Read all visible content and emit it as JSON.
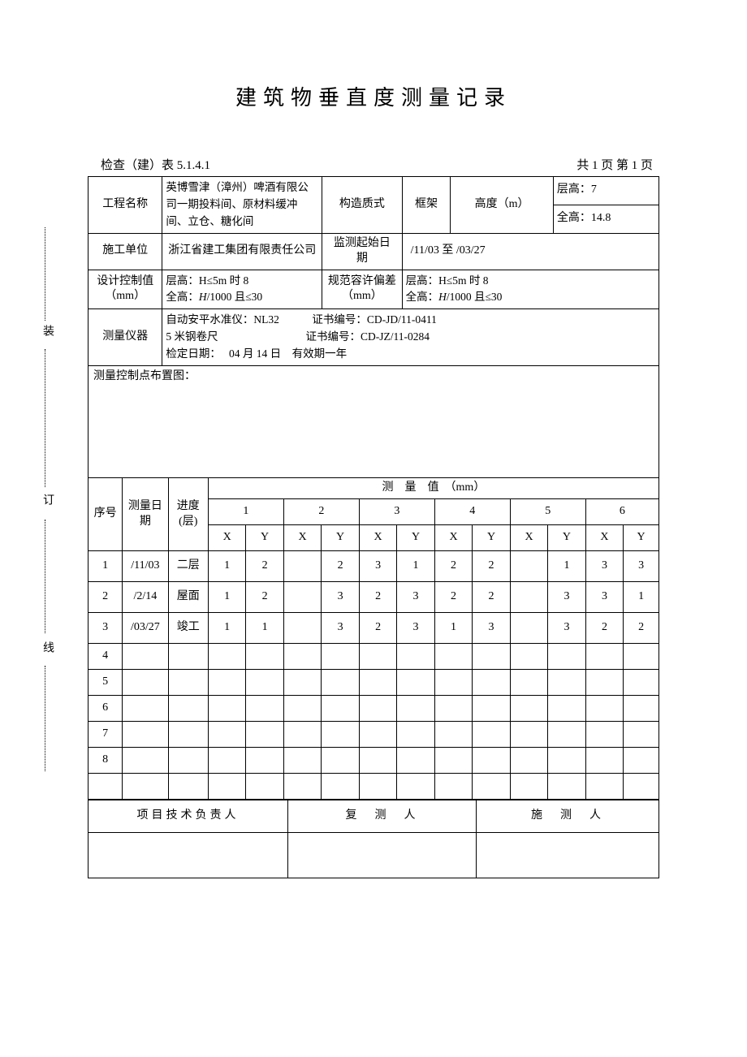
{
  "title": "建筑物垂直度测量记录",
  "form_no_label": "检查（建）表 5.1.4.1",
  "page_info": "共 1 页 第 1 页",
  "labels": {
    "project_name": "工程名称",
    "structure_type": "构造质式",
    "frame": "框架",
    "height_m": "高度（m）",
    "floor_h": "层高：",
    "total_h": "全高：",
    "contractor": "施工单位",
    "monitor_period": "监测起始日　期",
    "design_ctrl": "设计控制值（mm）",
    "spec_tol": "规范容许偏差（mm）",
    "instrument": "测量仪器",
    "ctrl_pt_layout": "测量控制点布置图：",
    "seq": "序号",
    "date": "测量日期",
    "floor": "进度(层)",
    "measure_value": "测　量　值　（mm）",
    "pm": "项目技术负责人",
    "rechecker": "复　测　人",
    "surveyor": "施　测　人"
  },
  "project": {
    "name": "英博雪津（漳州）啤酒有限公司一期投料间、原材料缓冲间、立仓、糖化间",
    "floor_height": "7",
    "total_height": "14.8",
    "contractor": "浙江省建工集团有限责任公司",
    "period": "/11/03 至 /03/27"
  },
  "design_ctrl_1": "层高：H≤5m 时 8",
  "design_ctrl_2_pre": "全高：",
  "design_ctrl_2_H": "H",
  "design_ctrl_2_post": "/1000 且≤30",
  "spec_1": "层高：H≤5m 时 8",
  "spec_2_pre": "全高：",
  "spec_2_H": "H",
  "spec_2_post": "/1000 且≤30",
  "instrument_lines": {
    "l1": "自动安平水准仪：NL32　　　证书编号：CD-JD/11-0411",
    "l2": "5 米钢卷尺　　　　　　　　证书编号：CD-JZ/11-0284",
    "l3": "检定日期：　 04 月 14 日　有效期一年"
  },
  "points": [
    "1",
    "2",
    "3",
    "4",
    "5",
    "6"
  ],
  "xy": [
    "X",
    "Y"
  ],
  "rows": [
    {
      "n": "1",
      "d": "/11/03",
      "f": "二层",
      "v": [
        "1",
        "2",
        "",
        "2",
        "3",
        "1",
        "2",
        "2",
        "",
        "1",
        "3",
        "3"
      ]
    },
    {
      "n": "2",
      "d": "/2/14",
      "f": "屋面",
      "v": [
        "1",
        "2",
        "",
        "3",
        "2",
        "3",
        "2",
        "2",
        "",
        "3",
        "3",
        "1"
      ]
    },
    {
      "n": "3",
      "d": "/03/27",
      "f": "竣工",
      "v": [
        "1",
        "1",
        "",
        "3",
        "2",
        "3",
        "1",
        "3",
        "",
        "3",
        "2",
        "2"
      ]
    },
    {
      "n": "4",
      "d": "",
      "f": "",
      "v": [
        "",
        "",
        "",
        "",
        "",
        "",
        "",
        "",
        "",
        "",
        "",
        ""
      ]
    },
    {
      "n": "5",
      "d": "",
      "f": "",
      "v": [
        "",
        "",
        "",
        "",
        "",
        "",
        "",
        "",
        "",
        "",
        "",
        ""
      ]
    },
    {
      "n": "6",
      "d": "",
      "f": "",
      "v": [
        "",
        "",
        "",
        "",
        "",
        "",
        "",
        "",
        "",
        "",
        "",
        ""
      ]
    },
    {
      "n": "7",
      "d": "",
      "f": "",
      "v": [
        "",
        "",
        "",
        "",
        "",
        "",
        "",
        "",
        "",
        "",
        "",
        ""
      ]
    },
    {
      "n": "8",
      "d": "",
      "f": "",
      "v": [
        "",
        "",
        "",
        "",
        "",
        "",
        "",
        "",
        "",
        "",
        "",
        ""
      ]
    },
    {
      "n": "",
      "d": "",
      "f": "",
      "v": [
        "",
        "",
        "",
        "",
        "",
        "",
        "",
        "",
        "",
        "",
        "",
        ""
      ]
    }
  ],
  "side": {
    "a": "装",
    "b": "订",
    "c": "线"
  }
}
